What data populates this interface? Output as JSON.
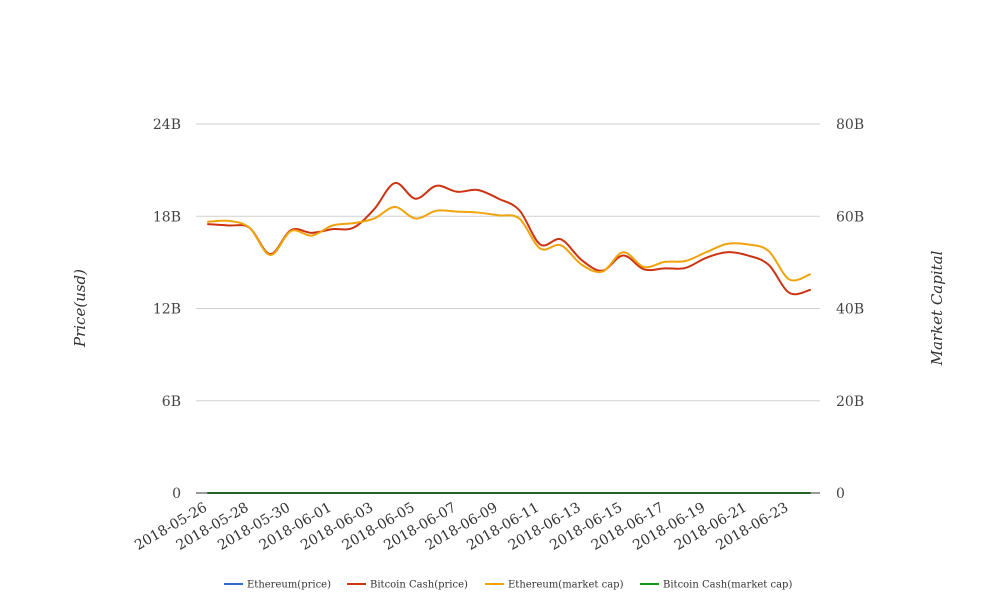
{
  "chart_data": {
    "type": "line",
    "title": "",
    "ylabel_left": "Price(usd)",
    "ylabel_right": "Market Capital",
    "y_left": {
      "ticks": [
        0,
        6,
        12,
        18,
        24
      ],
      "tick_labels": [
        "0",
        "6B",
        "12B",
        "18B",
        "24B"
      ],
      "range": [
        0,
        24
      ]
    },
    "y_right": {
      "ticks": [
        0,
        20,
        40,
        60,
        80
      ],
      "tick_labels": [
        "0",
        "20B",
        "40B",
        "60B",
        "80B"
      ],
      "range": [
        0,
        80
      ]
    },
    "x_tick_labels": [
      "2018-05-26",
      "2018-05-28",
      "2018-05-30",
      "2018-06-01",
      "2018-06-03",
      "2018-06-05",
      "2018-06-07",
      "2018-06-09",
      "2018-06-11",
      "2018-06-13",
      "2018-06-15",
      "2018-06-17",
      "2018-06-19",
      "2018-06-21",
      "2018-06-23"
    ],
    "x": [
      "2018-05-26",
      "2018-05-27",
      "2018-05-28",
      "2018-05-29",
      "2018-05-30",
      "2018-05-31",
      "2018-06-01",
      "2018-06-02",
      "2018-06-03",
      "2018-06-04",
      "2018-06-05",
      "2018-06-06",
      "2018-06-07",
      "2018-06-08",
      "2018-06-09",
      "2018-06-10",
      "2018-06-11",
      "2018-06-12",
      "2018-06-13",
      "2018-06-14",
      "2018-06-15",
      "2018-06-16",
      "2018-06-17",
      "2018-06-18",
      "2018-06-19",
      "2018-06-20",
      "2018-06-21",
      "2018-06-22",
      "2018-06-23",
      "2018-06-24"
    ],
    "grid": true,
    "legend_position": "bottom",
    "series": [
      {
        "name": "Ethereum(price)",
        "axis": "left",
        "color": "#3366cc",
        "values": [
          0.0006,
          0.0006,
          0.0006,
          0.0006,
          0.0006,
          0.0006,
          0.0006,
          0.0006,
          0.0006,
          0.0006,
          0.0006,
          0.0006,
          0.0006,
          0.0006,
          0.0006,
          0.0006,
          0.0006,
          0.0005,
          0.0005,
          0.0005,
          0.0005,
          0.0005,
          0.0005,
          0.0005,
          0.0005,
          0.0005,
          0.0005,
          0.0005,
          0.0005,
          0.0005
        ]
      },
      {
        "name": "Bitcoin Cash(price)",
        "axis": "right",
        "color": "#cc3311",
        "values": [
          58.3,
          58.0,
          57.5,
          51.8,
          57.0,
          56.4,
          57.2,
          57.5,
          61.5,
          67.2,
          63.8,
          66.6,
          65.3,
          65.7,
          63.8,
          61.3,
          53.9,
          55.0,
          50.5,
          48.2,
          51.5,
          48.5,
          48.7,
          48.8,
          51.0,
          52.2,
          51.5,
          49.5,
          43.4,
          44.0
        ]
      },
      {
        "name": "Ethereum(market cap)",
        "axis": "right",
        "color": "#f0a30a",
        "values": [
          58.8,
          59.0,
          57.5,
          51.6,
          56.8,
          55.8,
          58.0,
          58.5,
          59.5,
          62.0,
          59.5,
          61.2,
          61.0,
          60.8,
          60.2,
          59.5,
          53.0,
          53.7,
          49.5,
          48.0,
          52.2,
          49.0,
          50.1,
          50.3,
          52.2,
          54.0,
          53.9,
          52.5,
          46.3,
          47.4
        ]
      },
      {
        "name": "Bitcoin Cash(market cap)",
        "axis": "right",
        "color": "#109618",
        "values": [
          0.002,
          0.002,
          0.002,
          0.002,
          0.002,
          0.002,
          0.002,
          0.002,
          0.002,
          0.002,
          0.002,
          0.002,
          0.002,
          0.002,
          0.002,
          0.002,
          0.002,
          0.002,
          0.002,
          0.002,
          0.002,
          0.002,
          0.002,
          0.002,
          0.002,
          0.002,
          0.002,
          0.002,
          0.002,
          0.002
        ]
      }
    ]
  }
}
